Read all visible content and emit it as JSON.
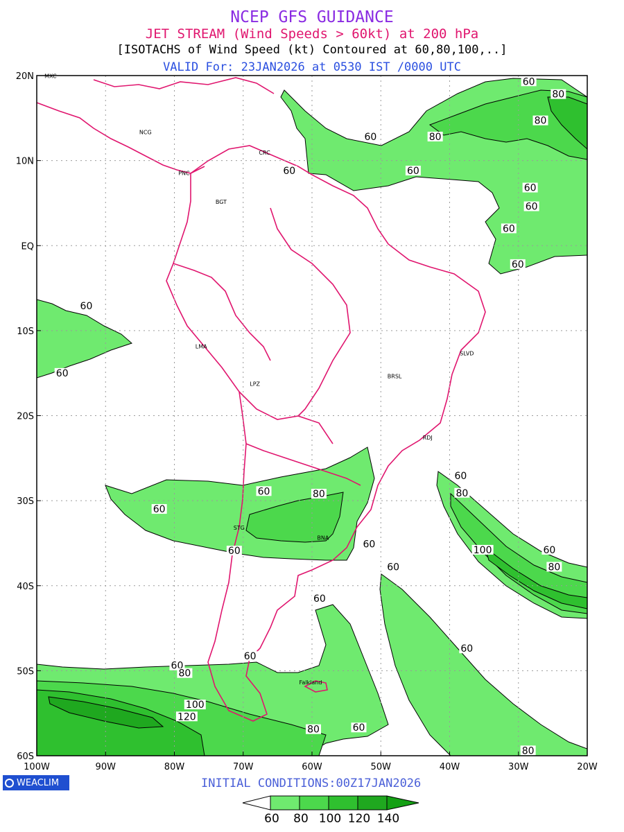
{
  "header": {
    "line1": "NCEP GFS GUIDANCE",
    "line2": "JET STREAM (Wind Speeds > 60kt) at 200 hPa",
    "line3": "[ISOTACHS of Wind Speed (kt) Contoured at 60,80,100,..]",
    "line4": "VALID For: 23JAN2026 at 0530 IST /0000 UTC"
  },
  "colors": {
    "line1": "#8a2be2",
    "line2": "#e0156e",
    "line3": "#000000",
    "line4": "#2a4fe0",
    "coast": "#e0156e",
    "fill_60": "#6fea6f",
    "fill_80": "#4cd84c",
    "fill_100": "#2fc02f",
    "fill_120": "#1fa81f",
    "fill_140": "#14a014",
    "footer": "#4a5fd8"
  },
  "axes": {
    "lat_labels": [
      "20N",
      "10N",
      "EQ",
      "10S",
      "20S",
      "30S",
      "40S",
      "50S",
      "60S"
    ],
    "lon_labels": [
      "100W",
      "90W",
      "80W",
      "70W",
      "60W",
      "50W",
      "40W",
      "30W",
      "20W"
    ],
    "lat_range": [
      -60,
      20
    ],
    "lon_range": [
      -100,
      -20
    ],
    "grid": true
  },
  "cities": [
    {
      "label": "MXC",
      "lon": -98,
      "lat": 19.7
    },
    {
      "label": "NCG",
      "lon": -84.2,
      "lat": 13.1
    },
    {
      "label": "CRC",
      "lon": -66.9,
      "lat": 10.7
    },
    {
      "label": "PNC",
      "lon": -78.6,
      "lat": 8.3
    },
    {
      "label": "BGT",
      "lon": -73.2,
      "lat": 4.9
    },
    {
      "label": "LMA",
      "lon": -76.1,
      "lat": -12.1
    },
    {
      "label": "LPZ",
      "lon": -68.3,
      "lat": -16.5
    },
    {
      "label": "BRSL",
      "lon": -48,
      "lat": -15.6
    },
    {
      "label": "SLVD",
      "lon": -37.5,
      "lat": -12.9
    },
    {
      "label": "RDJ",
      "lon": -43.2,
      "lat": -22.8
    },
    {
      "label": "STG",
      "lon": -70.6,
      "lat": -33.4
    },
    {
      "label": "BNA",
      "lon": -58.4,
      "lat": -34.6
    },
    {
      "label": "Falkland",
      "lon": -60.2,
      "lat": -51.6
    }
  ],
  "contour_labels": [
    {
      "v": "60",
      "lon": -28.5,
      "lat": 19.0
    },
    {
      "v": "80",
      "lon": -24.2,
      "lat": 17.5
    },
    {
      "v": "80",
      "lon": -26.8,
      "lat": 14.4
    },
    {
      "v": "60",
      "lon": -51.5,
      "lat": 12.5
    },
    {
      "v": "80",
      "lon": -42.1,
      "lat": 12.5
    },
    {
      "v": "60",
      "lon": -45.3,
      "lat": 8.5
    },
    {
      "v": "60",
      "lon": -63.3,
      "lat": 8.5
    },
    {
      "v": "60",
      "lon": -28.3,
      "lat": 6.5
    },
    {
      "v": "60",
      "lon": -28.1,
      "lat": 4.3
    },
    {
      "v": "60",
      "lon": -31.4,
      "lat": 1.7
    },
    {
      "v": "60",
      "lon": -30.1,
      "lat": -2.5
    },
    {
      "v": "60",
      "lon": -92.8,
      "lat": -7.4
    },
    {
      "v": "60",
      "lon": -96.3,
      "lat": -15.3
    },
    {
      "v": "60",
      "lon": -67,
      "lat": -29.2
    },
    {
      "v": "80",
      "lon": -59,
      "lat": -29.5
    },
    {
      "v": "60",
      "lon": -82.2,
      "lat": -31.3
    },
    {
      "v": "60",
      "lon": -51.7,
      "lat": -35.4
    },
    {
      "v": "60",
      "lon": -71.3,
      "lat": -36.2
    },
    {
      "v": "60",
      "lon": -38.4,
      "lat": -27.4
    },
    {
      "v": "80",
      "lon": -38.2,
      "lat": -29.4
    },
    {
      "v": "100",
      "lon": -35.2,
      "lat": -36.1
    },
    {
      "v": "60",
      "lon": -25.5,
      "lat": -36.1
    },
    {
      "v": "80",
      "lon": -24.8,
      "lat": -38.1
    },
    {
      "v": "60",
      "lon": -48.2,
      "lat": -38.1
    },
    {
      "v": "60",
      "lon": -58.9,
      "lat": -41.8
    },
    {
      "v": "60",
      "lon": -37.5,
      "lat": -47.7
    },
    {
      "v": "60",
      "lon": -79.6,
      "lat": -49.7
    },
    {
      "v": "80",
      "lon": -78.5,
      "lat": -50.6
    },
    {
      "v": "60",
      "lon": -69,
      "lat": -48.6
    },
    {
      "v": "100",
      "lon": -77,
      "lat": -54.3
    },
    {
      "v": "120",
      "lon": -78.2,
      "lat": -55.7
    },
    {
      "v": "80",
      "lon": -59.8,
      "lat": -57.2
    },
    {
      "v": "60",
      "lon": -53.2,
      "lat": -57.0
    },
    {
      "v": "80",
      "lon": -28.6,
      "lat": -59.7
    }
  ],
  "footer": {
    "logo": "WEACLIM",
    "initial_conditions": "INITIAL CONDITIONS:00Z17JAN2026"
  },
  "legend": {
    "levels": [
      "60",
      "80",
      "100",
      "120",
      "140"
    ]
  }
}
